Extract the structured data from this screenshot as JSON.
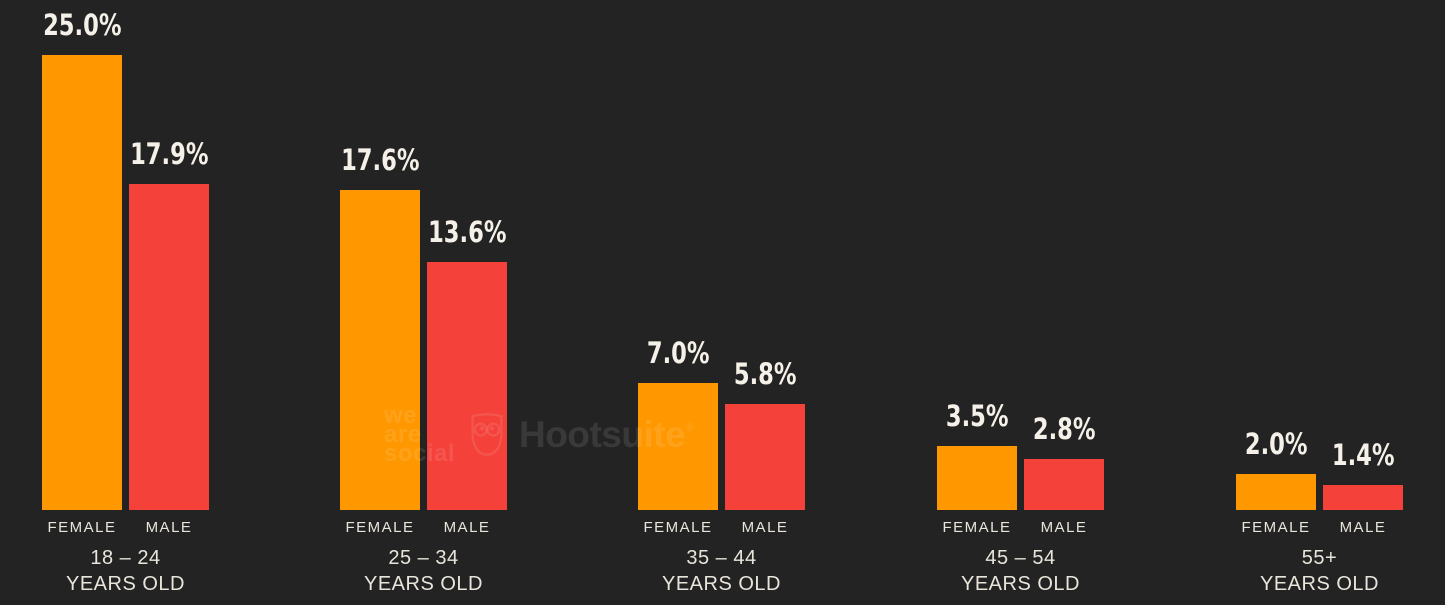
{
  "chart_data": {
    "type": "bar",
    "categories": [
      "18 – 24",
      "25 – 34",
      "35 – 44",
      "45 – 54",
      "55+"
    ],
    "category_suffix": "YEARS OLD",
    "series": [
      {
        "name": "FEMALE",
        "color": "#FF9800",
        "values": [
          25.0,
          17.6,
          7.0,
          3.5,
          2.0
        ]
      },
      {
        "name": "MALE",
        "color": "#F4423B",
        "values": [
          17.9,
          13.6,
          5.8,
          2.8,
          1.4
        ]
      }
    ],
    "value_labels": {
      "FEMALE": [
        "25.0%",
        "17.6%",
        "7.0%",
        "3.5%",
        "2.0%"
      ],
      "MALE": [
        "17.9%",
        "13.6%",
        "5.8%",
        "2.8%",
        "1.4%"
      ]
    },
    "title": "",
    "xlabel": "",
    "ylabel": "",
    "ylim": [
      0,
      28
    ],
    "grid": false,
    "legend_position": "below-each-bar"
  },
  "colors": {
    "background": "#232323",
    "female_bar": "#FF9800",
    "male_bar": "#F4423B",
    "axis_text": "#E9E5DB",
    "value_text": "#F5F1E8"
  },
  "watermark": {
    "we_are_social_lines": [
      "we",
      "are",
      "social"
    ],
    "hootsuite_label": "Hootsuite",
    "registered_mark": "®",
    "owl_icon": "hootsuite-owl-icon"
  }
}
